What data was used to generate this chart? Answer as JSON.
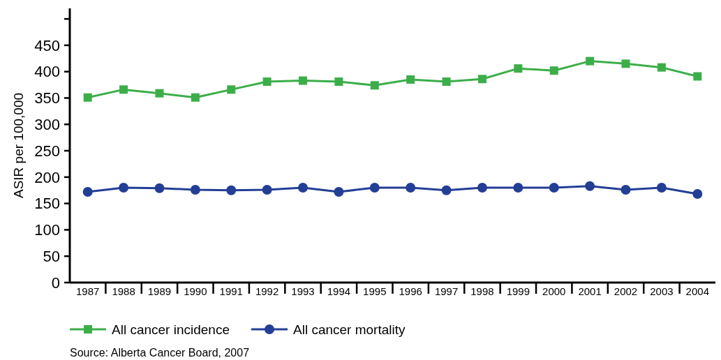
{
  "chart_data": {
    "type": "line",
    "ylabel": "ASIR per 100,000",
    "categories": [
      "1987",
      "1988",
      "1989",
      "1990",
      "1991",
      "1992",
      "1993",
      "1994",
      "1995",
      "1996",
      "1997",
      "1998",
      "1999",
      "2000",
      "2001",
      "2002",
      "2003",
      "2004"
    ],
    "series": [
      {
        "name": "All cancer incidence",
        "color": "#3cae49",
        "marker": "square",
        "values": [
          351,
          366,
          359,
          351,
          366,
          381,
          383,
          381,
          374,
          385,
          381,
          386,
          406,
          402,
          420,
          415,
          408,
          391
        ]
      },
      {
        "name": "All cancer mortality",
        "color": "#233f95",
        "marker": "circle",
        "values": [
          172,
          180,
          179,
          176,
          175,
          176,
          180,
          172,
          180,
          180,
          175,
          180,
          180,
          180,
          183,
          176,
          180,
          168
        ]
      }
    ],
    "ylim": [
      0,
      520
    ],
    "yticks": [
      0,
      50,
      100,
      150,
      200,
      250,
      300,
      350,
      400,
      450,
      {
        "value": 500,
        "label": null
      }
    ],
    "grid": false,
    "legend": "bottom",
    "line_style": "solid",
    "annotations": [
      "Source: Alberta Cancer Board, 2007"
    ]
  }
}
